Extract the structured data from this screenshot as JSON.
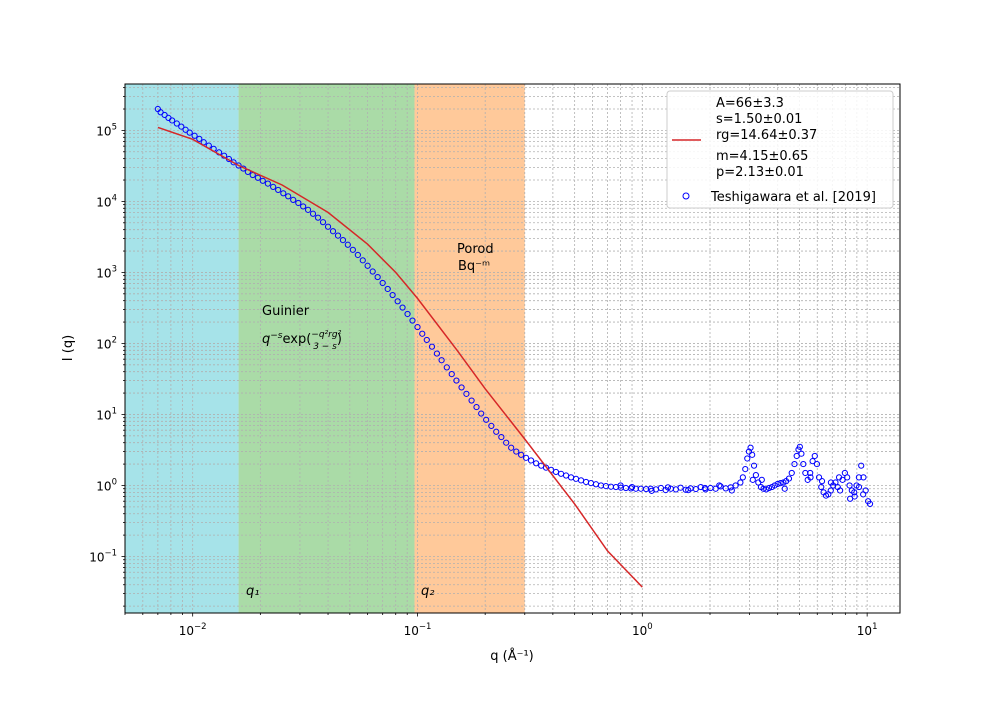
{
  "chart_data": {
    "type": "scatter",
    "title": "",
    "xlabel": "q (Å⁻¹)",
    "ylabel": "I (q)",
    "xscale": "log",
    "yscale": "log",
    "xlim": [
      0.005,
      14
    ],
    "ylim": [
      0.016,
      450000
    ],
    "grid": true,
    "legend_position": "top-right",
    "x_tick_labels": [
      {
        "value": 0.01,
        "base": "10",
        "exp": "−2"
      },
      {
        "value": 0.1,
        "base": "10",
        "exp": "−1"
      },
      {
        "value": 1,
        "base": "10",
        "exp": "0"
      },
      {
        "value": 10,
        "base": "10",
        "exp": "1"
      }
    ],
    "y_tick_labels": [
      {
        "value": 0.1,
        "base": "10",
        "exp": "−1"
      },
      {
        "value": 1,
        "base": "10",
        "exp": "0"
      },
      {
        "value": 10,
        "base": "10",
        "exp": "1"
      },
      {
        "value": 100,
        "base": "10",
        "exp": "2"
      },
      {
        "value": 1000,
        "base": "10",
        "exp": "3"
      },
      {
        "value": 10000,
        "base": "10",
        "exp": "4"
      },
      {
        "value": 100000,
        "base": "10",
        "exp": "5"
      }
    ],
    "regions": [
      {
        "x0": 0.005,
        "x1": 0.016,
        "color": "#a6e3e9"
      },
      {
        "x0": 0.016,
        "x1": 0.097,
        "color": "#aadba7"
      },
      {
        "x0": 0.097,
        "x1": 0.3,
        "color": "#ffc99a"
      }
    ],
    "annotations": {
      "guinier_label": "Guinier",
      "porod_label": "Porod",
      "porod_formula": "Bq⁻ᵐ",
      "q1_label": "q₁",
      "q2_label": "q₂"
    },
    "legend": {
      "fit_lines": [
        "A=66±3.3",
        "s=1.50±0.01",
        "rg=14.64±0.37",
        "m=4.15±0.65",
        "p=2.13±0.01"
      ],
      "scatter_label": "Teshigawara et al. [2019]"
    },
    "series": [
      {
        "name": "fit",
        "kind": "line",
        "color": "#d62728",
        "points": [
          [
            0.007,
            110000
          ],
          [
            0.01,
            75000
          ],
          [
            0.016,
            32000
          ],
          [
            0.025,
            17000
          ],
          [
            0.04,
            7000
          ],
          [
            0.06,
            2500
          ],
          [
            0.08,
            1000
          ],
          [
            0.1,
            430
          ],
          [
            0.15,
            80
          ],
          [
            0.2,
            23
          ],
          [
            0.3,
            4.5
          ],
          [
            0.5,
            0.55
          ],
          [
            0.7,
            0.12
          ],
          [
            1.0,
            0.037
          ]
        ]
      },
      {
        "name": "Teshigawara et al. [2019]",
        "kind": "scatter",
        "color": "#0000ff",
        "points": [
          [
            0.007,
            200000
          ],
          [
            0.0072,
            180000
          ],
          [
            0.0075,
            165000
          ],
          [
            0.0078,
            150000
          ],
          [
            0.0081,
            138000
          ],
          [
            0.0085,
            125000
          ],
          [
            0.0089,
            113000
          ],
          [
            0.0093,
            102000
          ],
          [
            0.0097,
            93000
          ],
          [
            0.0102,
            84000
          ],
          [
            0.0107,
            76000
          ],
          [
            0.0112,
            68000
          ],
          [
            0.0118,
            61000
          ],
          [
            0.0124,
            55000
          ],
          [
            0.0131,
            49000
          ],
          [
            0.0138,
            44000
          ],
          [
            0.0145,
            39500
          ],
          [
            0.0152,
            35500
          ],
          [
            0.016,
            32000
          ],
          [
            0.0168,
            29000
          ],
          [
            0.0176,
            26000
          ],
          [
            0.0185,
            23500
          ],
          [
            0.0195,
            21500
          ],
          [
            0.0205,
            19500
          ],
          [
            0.0216,
            17800
          ],
          [
            0.0228,
            16000
          ],
          [
            0.024,
            14500
          ],
          [
            0.0253,
            13000
          ],
          [
            0.0266,
            11800
          ],
          [
            0.028,
            10500
          ],
          [
            0.0295,
            9500
          ],
          [
            0.031,
            8500
          ],
          [
            0.0326,
            7600
          ],
          [
            0.0343,
            6700
          ],
          [
            0.0361,
            5900
          ],
          [
            0.038,
            5100
          ],
          [
            0.04,
            4400
          ],
          [
            0.0421,
            3800
          ],
          [
            0.0443,
            3300
          ],
          [
            0.0466,
            2850
          ],
          [
            0.049,
            2450
          ],
          [
            0.0516,
            2080
          ],
          [
            0.0543,
            1760
          ],
          [
            0.0571,
            1480
          ],
          [
            0.06,
            1240
          ],
          [
            0.0632,
            1030
          ],
          [
            0.0665,
            860
          ],
          [
            0.07,
            710
          ],
          [
            0.0737,
            585
          ],
          [
            0.0775,
            480
          ],
          [
            0.0816,
            392
          ],
          [
            0.0858,
            320
          ],
          [
            0.0903,
            260
          ],
          [
            0.095,
            210
          ],
          [
            0.1,
            170
          ],
          [
            0.105,
            137
          ],
          [
            0.11,
            112
          ],
          [
            0.116,
            90
          ],
          [
            0.122,
            72
          ],
          [
            0.128,
            58
          ],
          [
            0.135,
            46
          ],
          [
            0.142,
            37
          ],
          [
            0.149,
            30
          ],
          [
            0.157,
            24
          ],
          [
            0.165,
            19.5
          ],
          [
            0.174,
            15.7
          ],
          [
            0.183,
            12.7
          ],
          [
            0.192,
            10.3
          ],
          [
            0.202,
            8.4
          ],
          [
            0.213,
            6.9
          ],
          [
            0.224,
            5.7
          ],
          [
            0.236,
            4.8
          ],
          [
            0.248,
            4.0
          ],
          [
            0.261,
            3.4
          ],
          [
            0.275,
            3.0
          ],
          [
            0.289,
            2.7
          ],
          [
            0.304,
            2.45
          ],
          [
            0.32,
            2.25
          ],
          [
            0.337,
            2.05
          ],
          [
            0.355,
            1.9
          ],
          [
            0.373,
            1.78
          ],
          [
            0.393,
            1.66
          ],
          [
            0.413,
            1.55
          ],
          [
            0.435,
            1.46
          ],
          [
            0.458,
            1.38
          ],
          [
            0.482,
            1.3
          ],
          [
            0.507,
            1.24
          ],
          [
            0.534,
            1.18
          ],
          [
            0.562,
            1.12
          ],
          [
            0.591,
            1.08
          ],
          [
            0.622,
            1.04
          ],
          [
            0.655,
            1.0
          ],
          [
            0.689,
            0.98
          ],
          [
            0.725,
            0.96
          ],
          [
            0.763,
            0.95
          ],
          [
            0.803,
            0.93
          ],
          [
            0.845,
            0.92
          ],
          [
            0.89,
            0.91
          ],
          [
            0.936,
            0.9
          ],
          [
            0.985,
            0.9
          ],
          [
            1.04,
            0.89
          ],
          [
            1.09,
            0.9
          ],
          [
            1.15,
            0.88
          ],
          [
            1.21,
            0.92
          ],
          [
            1.27,
            0.86
          ],
          [
            1.34,
            0.9
          ],
          [
            1.41,
            0.88
          ],
          [
            1.48,
            0.93
          ],
          [
            1.56,
            0.87
          ],
          [
            1.64,
            0.91
          ],
          [
            1.73,
            0.89
          ],
          [
            1.82,
            0.95
          ],
          [
            1.91,
            0.88
          ],
          [
            2.01,
            0.92
          ],
          [
            2.12,
            0.9
          ],
          [
            2.23,
            0.97
          ],
          [
            2.35,
            0.91
          ],
          [
            2.47,
            0.94
          ],
          [
            2.6,
            1.0
          ],
          [
            2.73,
            1.1
          ],
          [
            2.8,
            1.3
          ],
          [
            2.87,
            1.7
          ],
          [
            2.93,
            2.4
          ],
          [
            2.98,
            3.0
          ],
          [
            3.03,
            3.4
          ],
          [
            3.08,
            2.7
          ],
          [
            3.14,
            1.9
          ],
          [
            3.2,
            1.4
          ],
          [
            3.28,
            1.1
          ],
          [
            3.37,
            0.95
          ],
          [
            3.46,
            0.9
          ],
          [
            3.56,
            0.88
          ],
          [
            3.66,
            0.92
          ],
          [
            3.77,
            0.95
          ],
          [
            3.88,
            1.0
          ],
          [
            4.0,
            1.05
          ],
          [
            4.12,
            1.08
          ],
          [
            4.24,
            1.1
          ],
          [
            4.36,
            1.15
          ],
          [
            4.49,
            1.25
          ],
          [
            4.62,
            1.5
          ],
          [
            4.75,
            2.0
          ],
          [
            4.86,
            2.6
          ],
          [
            4.95,
            3.2
          ],
          [
            5.02,
            3.5
          ],
          [
            5.1,
            2.8
          ],
          [
            5.2,
            2.0
          ],
          [
            5.31,
            1.5
          ],
          [
            5.44,
            1.2
          ],
          [
            5.58,
            1.5
          ],
          [
            5.72,
            2.2
          ],
          [
            5.85,
            2.6
          ],
          [
            5.98,
            2.0
          ],
          [
            6.11,
            1.3
          ],
          [
            6.25,
            0.95
          ],
          [
            6.4,
            0.8
          ],
          [
            6.56,
            0.72
          ],
          [
            6.72,
            0.75
          ],
          [
            6.89,
            0.85
          ],
          [
            7.06,
            1.0
          ],
          [
            7.23,
            1.1
          ],
          [
            7.4,
            0.95
          ],
          [
            7.58,
            0.85
          ],
          [
            7.77,
            1.2
          ],
          [
            7.96,
            1.5
          ],
          [
            8.15,
            1.3
          ],
          [
            8.35,
            1.0
          ],
          [
            8.55,
            0.85
          ],
          [
            8.76,
            0.8
          ],
          [
            8.97,
            1.0
          ],
          [
            9.19,
            1.3
          ],
          [
            9.41,
            1.9
          ],
          [
            9.63,
            1.3
          ],
          [
            9.85,
            0.85
          ],
          [
            10.1,
            0.6
          ],
          [
            10.3,
            0.55
          ],
          [
            9.6,
            0.75
          ],
          [
            9.2,
            0.95
          ],
          [
            8.8,
            0.7
          ],
          [
            8.4,
            0.65
          ],
          [
            7.5,
            1.3
          ],
          [
            6.9,
            1.1
          ],
          [
            6.3,
            1.15
          ],
          [
            5.6,
            1.3
          ],
          [
            4.3,
            0.9
          ],
          [
            3.4,
            1.2
          ],
          [
            3.1,
            1.2
          ],
          [
            2.5,
            0.85
          ],
          [
            2.2,
            1.0
          ],
          [
            1.9,
            0.92
          ],
          [
            1.6,
            0.86
          ],
          [
            1.3,
            0.94
          ],
          [
            1.1,
            0.84
          ],
          [
            0.9,
            0.95
          ],
          [
            0.8,
            1.0
          ]
        ]
      }
    ]
  }
}
